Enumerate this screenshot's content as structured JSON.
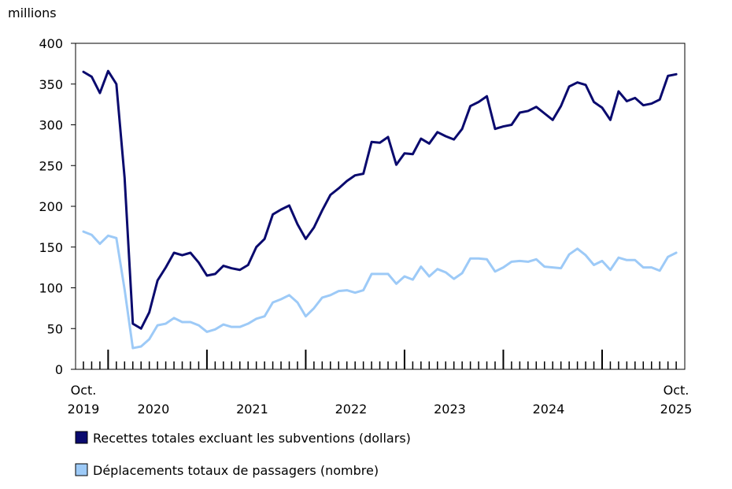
{
  "chart_data": {
    "type": "line",
    "ylabel": "millions",
    "ylim": [
      0,
      400
    ],
    "yticks": [
      0,
      50,
      100,
      150,
      200,
      250,
      300,
      350,
      400
    ],
    "x_start_label": {
      "month": "Oct.",
      "year": "2019"
    },
    "x_end_label": {
      "month": "Oct.",
      "year": "2025"
    },
    "year_labels": [
      "2020",
      "2021",
      "2022",
      "2023",
      "2024"
    ],
    "series": [
      {
        "name": "Recettes totales excluant les subventions (dollars)",
        "color": "#0a0a6e",
        "values": [
          365,
          359,
          339,
          366,
          350,
          235,
          56,
          50,
          70,
          109,
          125,
          143,
          140,
          143,
          131,
          115,
          117,
          127,
          124,
          122,
          128,
          150,
          160,
          190,
          196,
          201,
          178,
          160,
          174,
          195,
          214,
          222,
          231,
          238,
          240,
          279,
          278,
          285,
          251,
          265,
          264,
          283,
          277,
          291,
          286,
          282,
          295,
          323,
          328,
          335,
          295,
          298,
          300,
          315,
          317,
          322,
          314,
          306,
          323,
          347,
          352,
          349,
          328,
          321,
          306,
          341,
          329,
          333,
          324,
          326,
          331,
          360,
          362
        ]
      },
      {
        "name": "Déplacements totaux de passagers (nombre)",
        "color": "#9dcaf7",
        "values": [
          169,
          165,
          154,
          164,
          161,
          98,
          26,
          28,
          37,
          54,
          56,
          63,
          58,
          58,
          54,
          46,
          49,
          55,
          52,
          52,
          56,
          62,
          65,
          82,
          86,
          91,
          82,
          65,
          75,
          88,
          91,
          96,
          97,
          94,
          97,
          117,
          117,
          117,
          105,
          114,
          110,
          126,
          114,
          123,
          119,
          111,
          118,
          136,
          136,
          135,
          120,
          125,
          132,
          133,
          132,
          135,
          126,
          125,
          124,
          141,
          148,
          140,
          128,
          133,
          122,
          137,
          134,
          134,
          125,
          125,
          121,
          138,
          143
        ]
      }
    ]
  }
}
